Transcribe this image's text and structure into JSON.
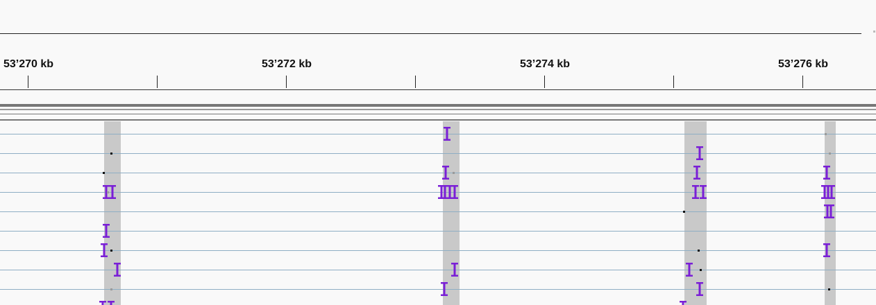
{
  "ruler": {
    "labels": [
      {
        "text": "53’270 kb"
      },
      {
        "text": "53’272 kb"
      },
      {
        "text": "53’274 kb"
      },
      {
        "text": "53’276 kb"
      }
    ]
  },
  "colors": {
    "insertion": "#7a1fd6",
    "coverage": "#c9c9c9",
    "row_line": "#8eaec4",
    "background": "#f9f9f9"
  },
  "icons": {
    "insertion_marker": "I-beam insertion glyph"
  }
}
